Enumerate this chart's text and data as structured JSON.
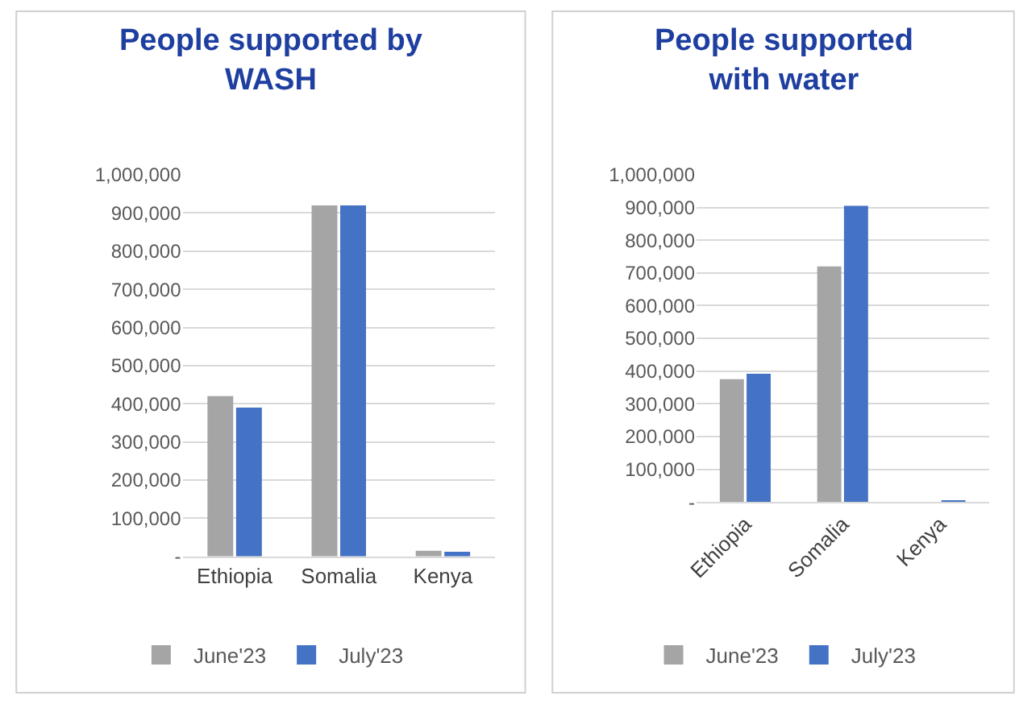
{
  "chart_data": [
    {
      "type": "bar",
      "title": "People supported by WASH",
      "categories": [
        "Ethiopia",
        "Somalia",
        "Kenya"
      ],
      "series": [
        {
          "name": "June'23",
          "color": "#a5a5a5",
          "values": [
            420000,
            920000,
            15000
          ]
        },
        {
          "name": "July'23",
          "color": "#4472c4",
          "values": [
            390000,
            920000,
            12000
          ]
        }
      ],
      "ylim": [
        0,
        1000000
      ],
      "yticks": [
        {
          "value": 0,
          "label": "-"
        },
        {
          "value": 100000,
          "label": "100,000"
        },
        {
          "value": 200000,
          "label": "200,000"
        },
        {
          "value": 300000,
          "label": "300,000"
        },
        {
          "value": 400000,
          "label": "400,000"
        },
        {
          "value": 500000,
          "label": "500,000"
        },
        {
          "value": 600000,
          "label": "600,000"
        },
        {
          "value": 700000,
          "label": "700,000"
        },
        {
          "value": 800000,
          "label": "800,000"
        },
        {
          "value": 900000,
          "label": "900,000"
        },
        {
          "value": 1000000,
          "label": "1,000,000"
        }
      ],
      "grid": "y",
      "legend": "bottom"
    },
    {
      "type": "bar",
      "title": "People supported with water",
      "categories": [
        "Ethiopia",
        "Somalia",
        "Kenya"
      ],
      "series": [
        {
          "name": "June'23",
          "color": "#a5a5a5",
          "values": [
            375000,
            720000,
            0
          ]
        },
        {
          "name": "July'23",
          "color": "#4472c4",
          "values": [
            392000,
            905000,
            5000
          ]
        }
      ],
      "ylim": [
        0,
        1000000
      ],
      "yticks": [
        {
          "value": 0,
          "label": "-"
        },
        {
          "value": 100000,
          "label": "100,000"
        },
        {
          "value": 200000,
          "label": "200,000"
        },
        {
          "value": 300000,
          "label": "300,000"
        },
        {
          "value": 400000,
          "label": "400,000"
        },
        {
          "value": 500000,
          "label": "500,000"
        },
        {
          "value": 600000,
          "label": "600,000"
        },
        {
          "value": 700000,
          "label": "700,000"
        },
        {
          "value": 800000,
          "label": "800,000"
        },
        {
          "value": 900000,
          "label": "900,000"
        },
        {
          "value": 1000000,
          "label": "1,000,000"
        }
      ],
      "grid": "y",
      "legend": "bottom"
    }
  ]
}
